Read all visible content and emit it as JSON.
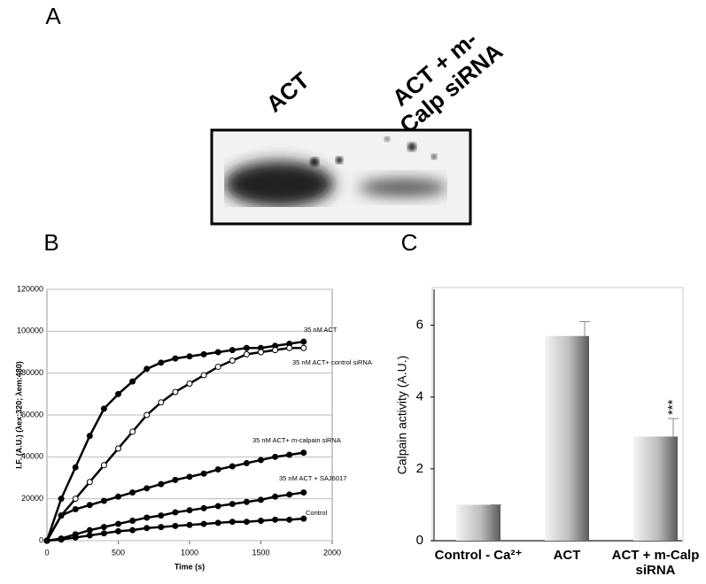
{
  "panel_labels": [
    "A",
    "B",
    "C"
  ],
  "blot": {
    "lanes": [
      "ACT",
      "ACT + m-Calp siRNA"
    ]
  },
  "chart_data": [
    {
      "type": "line",
      "y_label": "I.F. (A.U.) (λex:320; λem:480)",
      "x_label": "Time (s)",
      "x": [
        0,
        100,
        200,
        300,
        400,
        500,
        600,
        700,
        800,
        900,
        1000,
        1100,
        1200,
        1300,
        1400,
        1500,
        1600,
        1700,
        1800
      ],
      "series": [
        {
          "name": "35 nM ACT",
          "color": "#000000",
          "values": [
            0,
            20000,
            35000,
            50000,
            63000,
            70000,
            76000,
            82000,
            85000,
            87000,
            88000,
            89000,
            90000,
            91000,
            92000,
            92000,
            93000,
            94000,
            95000
          ]
        },
        {
          "name": "35 nM ACT+  control siRNA",
          "color": "#ffffff",
          "values": [
            0,
            12000,
            20000,
            28000,
            36000,
            44000,
            52000,
            60000,
            66000,
            71000,
            75000,
            79000,
            83000,
            86000,
            89000,
            90000,
            91000,
            92000,
            92000
          ]
        },
        {
          "name": "35 nM ACT+ m-calpain siRNA",
          "color": "#000000",
          "values": [
            0,
            12000,
            15000,
            17000,
            19000,
            21000,
            23000,
            25000,
            27000,
            29000,
            30500,
            32000,
            34000,
            35500,
            37000,
            38500,
            40000,
            41000,
            42000
          ]
        },
        {
          "name": "35 nM ACT + SAJ6017",
          "color": "#000000",
          "values": [
            0,
            1000,
            3000,
            5000,
            6500,
            8000,
            9500,
            11000,
            12000,
            13500,
            14500,
            15500,
            16500,
            17500,
            18500,
            19500,
            21000,
            22000,
            23000
          ]
        },
        {
          "name": "Control",
          "color": "#000000",
          "values": [
            0,
            500,
            1500,
            2500,
            3500,
            4500,
            5000,
            6000,
            6500,
            7000,
            7500,
            8000,
            8500,
            9000,
            9000,
            9500,
            10000,
            10000,
            10500
          ]
        }
      ],
      "xlim": [
        0,
        2000
      ],
      "xticks": [
        0,
        500,
        1000,
        1500,
        2000
      ],
      "ylim": [
        0,
        120000
      ],
      "yticks": [
        0,
        20000,
        40000,
        60000,
        80000,
        100000,
        120000
      ],
      "grid": true
    },
    {
      "type": "bar",
      "y_label": "Calpain activity (A.U.)",
      "categories": [
        "Control - Ca²⁺",
        "ACT",
        "ACT + m-Calp siRNA"
      ],
      "values": [
        1,
        5.7,
        2.9
      ],
      "errors": [
        0,
        0.4,
        0.5
      ],
      "value_annotations": [
        null,
        null,
        "***"
      ],
      "ylim": [
        0,
        7
      ],
      "yticks": [
        0,
        2,
        4,
        6
      ],
      "grid": false
    }
  ]
}
